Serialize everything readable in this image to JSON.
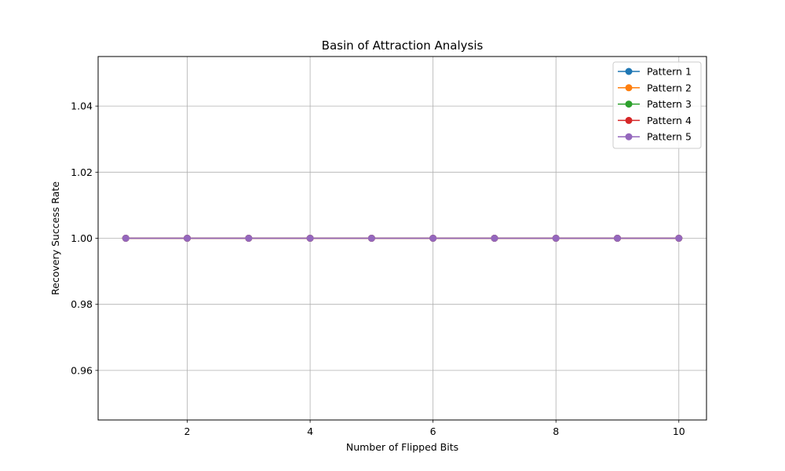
{
  "chart_data": {
    "type": "line",
    "title": "Basin of Attraction Analysis",
    "xlabel": "Number of Flipped Bits",
    "ylabel": "Recovery Success Rate",
    "x": [
      1,
      2,
      3,
      4,
      5,
      6,
      7,
      8,
      9,
      10
    ],
    "xlim": [
      0.55,
      10.45
    ],
    "ylim": [
      0.945,
      1.055
    ],
    "xticks": [
      2,
      4,
      6,
      8,
      10
    ],
    "xtick_labels": [
      "2",
      "4",
      "6",
      "8",
      "10"
    ],
    "yticks": [
      0.96,
      0.98,
      1.0,
      1.02,
      1.04
    ],
    "ytick_labels": [
      "0.96",
      "0.98",
      "1.00",
      "1.02",
      "1.04"
    ],
    "grid": true,
    "legend_position": "top-right",
    "series": [
      {
        "name": "Pattern 1",
        "color": "#1f77b4",
        "values": [
          1,
          1,
          1,
          1,
          1,
          1,
          1,
          1,
          1,
          1
        ]
      },
      {
        "name": "Pattern 2",
        "color": "#ff7f0e",
        "values": [
          1,
          1,
          1,
          1,
          1,
          1,
          1,
          1,
          1,
          1
        ]
      },
      {
        "name": "Pattern 3",
        "color": "#2ca02c",
        "values": [
          1,
          1,
          1,
          1,
          1,
          1,
          1,
          1,
          1,
          1
        ]
      },
      {
        "name": "Pattern 4",
        "color": "#d62728",
        "values": [
          1,
          1,
          1,
          1,
          1,
          1,
          1,
          1,
          1,
          1
        ]
      },
      {
        "name": "Pattern 5",
        "color": "#9467bd",
        "values": [
          1,
          1,
          1,
          1,
          1,
          1,
          1,
          1,
          1,
          1
        ]
      }
    ]
  }
}
